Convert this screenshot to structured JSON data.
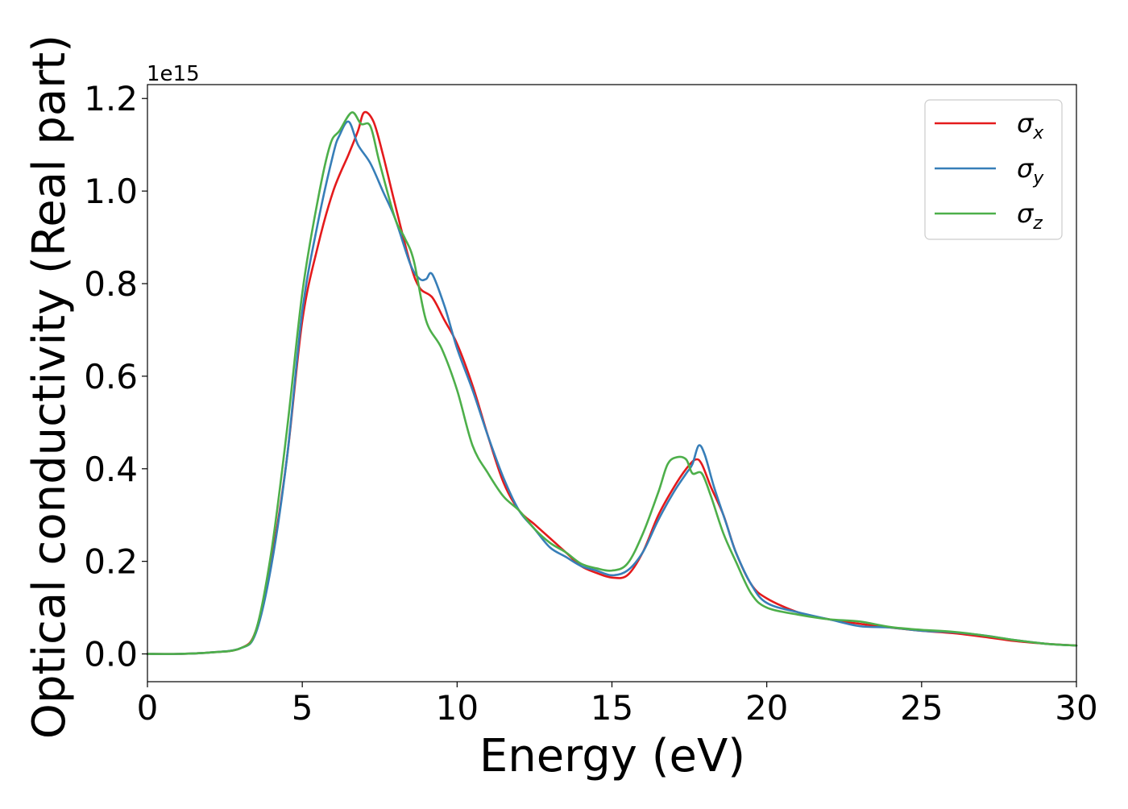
{
  "chart_data": {
    "type": "line",
    "xlabel": "Energy (eV)",
    "ylabel": "Optical conductivity (Real part)",
    "y_offset_label": "1e15",
    "xlim": [
      0,
      30
    ],
    "ylim": [
      -0.06,
      1.23
    ],
    "x_ticks": [
      0,
      5,
      10,
      15,
      20,
      25,
      30
    ],
    "x_tick_labels": [
      "0",
      "5",
      "10",
      "15",
      "20",
      "25",
      "30"
    ],
    "y_ticks": [
      0.0,
      0.2,
      0.4,
      0.6,
      0.8,
      1.0,
      1.2
    ],
    "y_tick_labels": [
      "0.0",
      "0.2",
      "0.4",
      "0.6",
      "0.8",
      "1.0",
      "1.2"
    ],
    "grid": false,
    "legend_position": "top-right",
    "series": [
      {
        "name": "σx",
        "symbol": "σ",
        "subscript": "x",
        "color": "#e41a1c",
        "x": [
          0,
          1,
          2,
          3,
          3.5,
          4,
          4.5,
          5,
          5.5,
          6,
          6.5,
          6.8,
          7.0,
          7.3,
          7.6,
          8.0,
          8.5,
          8.8,
          9.2,
          9.6,
          10,
          10.5,
          11,
          11.5,
          12,
          12.5,
          13,
          13.5,
          14,
          14.5,
          15,
          15.5,
          16,
          16.5,
          17,
          17.4,
          17.7,
          17.9,
          18.2,
          18.6,
          19,
          19.5,
          20,
          21,
          22,
          23,
          24,
          25,
          26,
          27,
          28,
          29,
          30
        ],
        "y": [
          0.0,
          0.0,
          0.003,
          0.012,
          0.05,
          0.2,
          0.42,
          0.72,
          0.88,
          1.0,
          1.08,
          1.13,
          1.17,
          1.15,
          1.08,
          0.97,
          0.84,
          0.79,
          0.77,
          0.72,
          0.67,
          0.58,
          0.47,
          0.37,
          0.31,
          0.28,
          0.25,
          0.22,
          0.19,
          0.175,
          0.165,
          0.17,
          0.22,
          0.3,
          0.36,
          0.4,
          0.42,
          0.41,
          0.36,
          0.3,
          0.22,
          0.15,
          0.12,
          0.09,
          0.075,
          0.065,
          0.057,
          0.05,
          0.045,
          0.037,
          0.028,
          0.022,
          0.018
        ]
      },
      {
        "name": "σy",
        "symbol": "σ",
        "subscript": "y",
        "color": "#377eb8",
        "x": [
          0,
          1,
          2,
          3,
          3.5,
          4,
          4.5,
          5,
          5.5,
          6,
          6.2,
          6.5,
          6.8,
          7.2,
          7.6,
          8.0,
          8.5,
          8.8,
          9.0,
          9.2,
          9.6,
          10,
          10.5,
          11,
          11.5,
          12,
          12.5,
          13,
          13.5,
          14,
          14.5,
          15,
          15.5,
          16,
          16.5,
          17,
          17.4,
          17.6,
          17.8,
          18.0,
          18.3,
          18.7,
          19,
          19.5,
          20,
          21,
          22,
          23,
          24,
          25,
          26,
          27,
          28,
          29,
          30
        ],
        "y": [
          0.0,
          0.0,
          0.003,
          0.012,
          0.045,
          0.19,
          0.42,
          0.74,
          0.93,
          1.08,
          1.12,
          1.15,
          1.1,
          1.06,
          1.0,
          0.94,
          0.84,
          0.81,
          0.81,
          0.82,
          0.75,
          0.66,
          0.57,
          0.47,
          0.38,
          0.31,
          0.27,
          0.23,
          0.21,
          0.19,
          0.18,
          0.17,
          0.18,
          0.22,
          0.29,
          0.35,
          0.39,
          0.41,
          0.45,
          0.43,
          0.36,
          0.28,
          0.22,
          0.15,
          0.11,
          0.09,
          0.075,
          0.06,
          0.057,
          0.05,
          0.047,
          0.04,
          0.03,
          0.022,
          0.018
        ]
      },
      {
        "name": "σz",
        "symbol": "σ",
        "subscript": "z",
        "color": "#4daf4a",
        "x": [
          0,
          1,
          2,
          3,
          3.5,
          4,
          4.5,
          5,
          5.5,
          5.9,
          6.2,
          6.6,
          6.9,
          7.2,
          7.5,
          8.0,
          8.3,
          8.6,
          9.0,
          9.5,
          10,
          10.5,
          11,
          11.5,
          12,
          12.5,
          13,
          13.5,
          14,
          14.5,
          15,
          15.5,
          16,
          16.5,
          16.8,
          17.1,
          17.4,
          17.6,
          17.9,
          18.2,
          18.6,
          19,
          19.5,
          20,
          21,
          22,
          23,
          24,
          25,
          26,
          27,
          28,
          29,
          30
        ],
        "y": [
          0.0,
          0.0,
          0.003,
          0.012,
          0.05,
          0.22,
          0.48,
          0.78,
          0.98,
          1.1,
          1.13,
          1.17,
          1.145,
          1.14,
          1.06,
          0.94,
          0.9,
          0.85,
          0.72,
          0.66,
          0.57,
          0.45,
          0.39,
          0.34,
          0.31,
          0.27,
          0.24,
          0.22,
          0.195,
          0.185,
          0.18,
          0.195,
          0.26,
          0.35,
          0.41,
          0.425,
          0.42,
          0.39,
          0.39,
          0.34,
          0.26,
          0.2,
          0.13,
          0.1,
          0.085,
          0.075,
          0.07,
          0.058,
          0.052,
          0.048,
          0.04,
          0.03,
          0.022,
          0.018
        ]
      }
    ]
  }
}
